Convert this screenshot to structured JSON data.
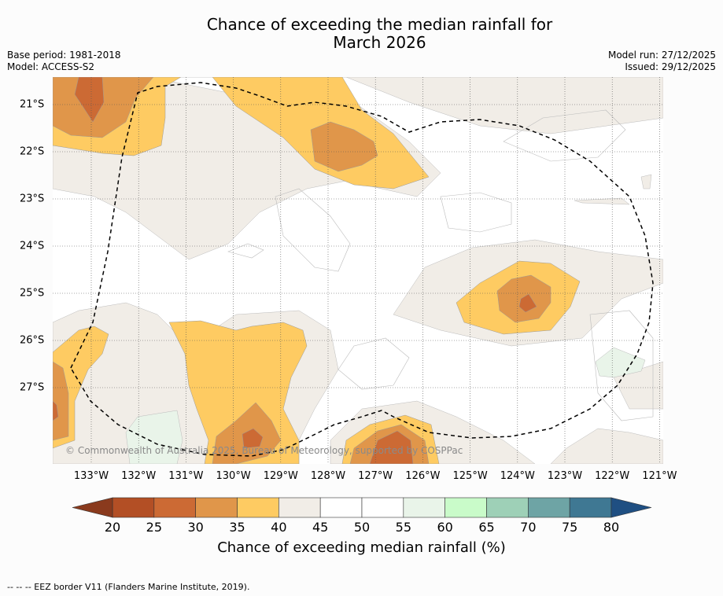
{
  "title_line1": "Chance of exceeding the median rainfall for",
  "title_line2": "March 2026",
  "base_period": "Base period: 1981-2018",
  "model": "Model: ACCESS-S2",
  "model_run": "Model run: 27/12/2025",
  "issued": "Issued: 29/12/2025",
  "copyright": "© Commonwealth of Australia 2025, Bureau of Meteorology, supported by COSPPac",
  "x_ticks": [
    "133°W",
    "132°W",
    "131°W",
    "130°W",
    "129°W",
    "128°W",
    "127°W",
    "126°W",
    "125°W",
    "124°W",
    "123°W",
    "122°W",
    "121°W"
  ],
  "y_ticks": [
    "21°S",
    "22°S",
    "23°S",
    "24°S",
    "25°S",
    "26°S",
    "27°S"
  ],
  "colorbar": {
    "ticks": [
      "20",
      "25",
      "30",
      "35",
      "40",
      "45",
      "50",
      "55",
      "60",
      "65",
      "70",
      "75",
      "80"
    ],
    "colors": [
      "#b34f25",
      "#cc6a34",
      "#e0964a",
      "#fecb62",
      "#f1ede7",
      "#ffffff",
      "#ffffff",
      "#e9f4e9",
      "#c9fbc9",
      "#9ed0b7",
      "#6ea4a5",
      "#3f7893"
    ],
    "under_color": "#8a3a1d",
    "over_color": "#1f4f82",
    "label": "Chance of exceeding median rainfall (%)"
  },
  "footer": "--  --  -- EEZ border V11 (Flanders Marine Institute, 2019)."
}
